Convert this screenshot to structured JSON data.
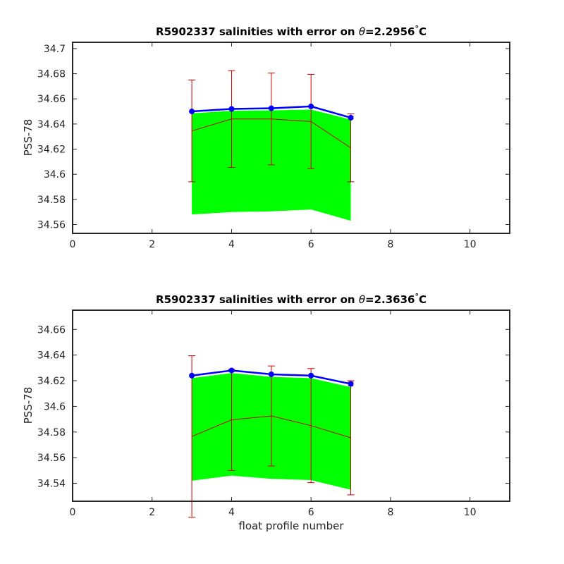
{
  "chart_data": [
    {
      "type": "line",
      "title_prefix": "R5902337 salinities with error on ",
      "title_symbol": "θ",
      "title_value": "=2.2956",
      "title_degree": "°",
      "title_unit": "C",
      "xlabel": "",
      "ylabel": "PSS-78",
      "xlim": [
        0,
        11
      ],
      "ylim": [
        34.553,
        34.705
      ],
      "xticks": [
        0,
        2,
        4,
        6,
        8,
        10
      ],
      "yticks": [
        34.56,
        34.58,
        34.6,
        34.62,
        34.64,
        34.66,
        34.68,
        34.7
      ],
      "ytick_labels": [
        "34.56",
        "34.58",
        "34.6",
        "34.62",
        "34.64",
        "34.66",
        "34.68",
        "34.7"
      ],
      "x": [
        3,
        4,
        5,
        6,
        7
      ],
      "measured": [
        34.65,
        34.652,
        34.6525,
        34.654,
        34.645
      ],
      "measured_error": [
        0.0,
        0.0,
        0.0,
        0.0,
        0.001
      ],
      "band_upper": [
        34.6485,
        34.6505,
        34.6508,
        34.6515,
        34.6435
      ],
      "band_lower": [
        34.568,
        34.57,
        34.5705,
        34.572,
        34.563
      ],
      "mapped": [
        34.6345,
        34.644,
        34.644,
        34.642,
        34.621
      ],
      "mapped_error": [
        0.0405,
        0.0385,
        0.0365,
        0.0375,
        0.027
      ],
      "colors": {
        "measured": "#0000ff",
        "band": "#00ff00",
        "mapped": "#cc0000"
      }
    },
    {
      "type": "line",
      "title_prefix": "R5902337 salinities with error on ",
      "title_symbol": "θ",
      "title_value": "=2.3636",
      "title_degree": "°",
      "title_unit": "C",
      "xlabel": "float profile number",
      "ylabel": "PSS-78",
      "xlim": [
        0,
        11
      ],
      "ylim": [
        34.526,
        34.675
      ],
      "xticks": [
        0,
        2,
        4,
        6,
        8,
        10
      ],
      "yticks": [
        34.54,
        34.56,
        34.58,
        34.6,
        34.62,
        34.64,
        34.66
      ],
      "ytick_labels": [
        "34.54",
        "34.56",
        "34.58",
        "34.6",
        "34.62",
        "34.64",
        "34.66"
      ],
      "x": [
        3,
        4,
        5,
        6,
        7
      ],
      "measured": [
        34.624,
        34.628,
        34.625,
        34.624,
        34.6175
      ],
      "measured_error": [
        0.0,
        0.001,
        0.0,
        0.0,
        0.0015
      ],
      "band_upper": [
        34.622,
        34.626,
        34.623,
        34.622,
        34.615
      ],
      "band_lower": [
        34.542,
        34.546,
        34.5435,
        34.5425,
        34.535
      ],
      "mapped": [
        34.5765,
        34.5895,
        34.5925,
        34.585,
        34.5755
      ],
      "mapped_error": [
        0.063,
        0.0395,
        0.039,
        0.0445,
        0.0445
      ],
      "colors": {
        "measured": "#0000ff",
        "band": "#00ff00",
        "mapped": "#cc0000"
      }
    }
  ]
}
